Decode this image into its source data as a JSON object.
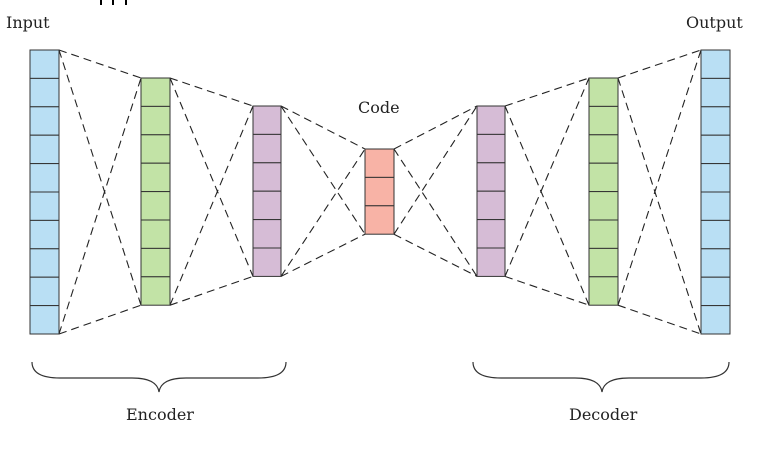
{
  "labels": {
    "input": "Input",
    "output": "Output",
    "code": "Code",
    "encoder": "Encoder",
    "decoder": "Decoder"
  },
  "layers": [
    {
      "name": "input-layer",
      "units": 10,
      "color": "#b9dff4"
    },
    {
      "name": "encoder-hidden-1",
      "units": 8,
      "color": "#c2e3a6"
    },
    {
      "name": "encoder-hidden-2",
      "units": 6,
      "color": "#d6bcd6"
    },
    {
      "name": "code-layer",
      "units": 3,
      "color": "#f8b3a6"
    },
    {
      "name": "decoder-hidden-1",
      "units": 6,
      "color": "#d6bcd6"
    },
    {
      "name": "decoder-hidden-2",
      "units": 8,
      "color": "#c2e3a6"
    },
    {
      "name": "output-layer",
      "units": 10,
      "color": "#b9dff4"
    }
  ],
  "connection_style": "dashed"
}
